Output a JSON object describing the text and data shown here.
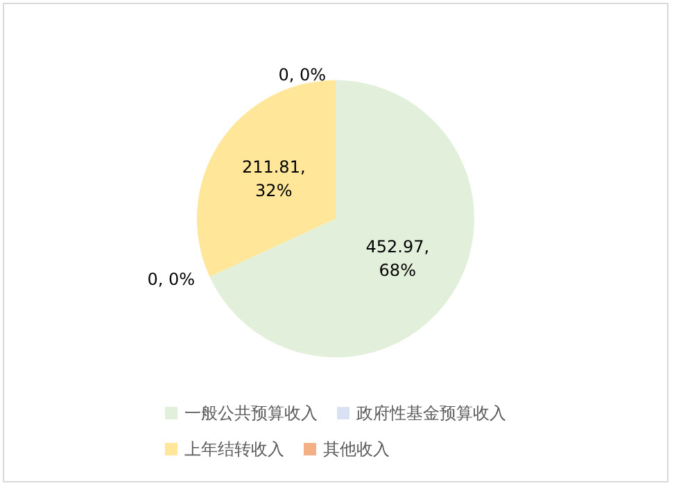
{
  "chart_data": {
    "type": "pie",
    "categories": [
      "一般公共预算收入",
      "政府性基金预算收入",
      "上年结转收入",
      "其他收入"
    ],
    "values": [
      452.97,
      0,
      211.81,
      0
    ],
    "colors": [
      "#e2efda",
      "#d9e1f2",
      "#ffe699",
      "#f4b084"
    ],
    "value_labels": [
      "452.97, 68%",
      "0, 0%",
      "211.81, 32%",
      "0, 0%"
    ],
    "legend": "bottom"
  }
}
